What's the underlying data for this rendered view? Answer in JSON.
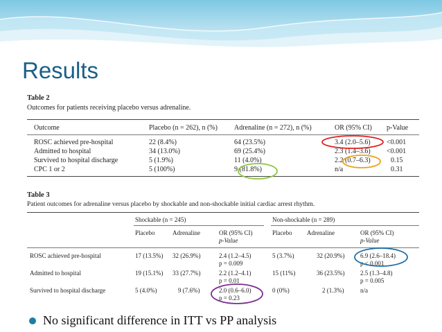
{
  "slide": {
    "title": "Results"
  },
  "colors": {
    "title": "#1a5f86",
    "bullet": "#1a7fa0",
    "red": "#e02020",
    "orange": "#e8a317",
    "green": "#8cc63f",
    "purple": "#7a2e8e",
    "blue": "#1d6fa8"
  },
  "table2": {
    "caption": "Table 2",
    "subtitle": "Outcomes for patients receiving placebo versus adrenaline.",
    "headers": [
      "Outcome",
      "Placebo (n = 262), n (%)",
      "Adrenaline (n = 272), n (%)",
      "OR (95% CI)",
      "p-Value"
    ],
    "rows": [
      [
        "ROSC achieved pre-hospital",
        "22 (8.4%)",
        "64 (23.5%)",
        "3.4 (2.0–5.6)",
        "<0.001"
      ],
      [
        "Admitted to hospital",
        "34 (13.0%)",
        "69 (25.4%)",
        "2.3 (1.4–3.6)",
        "<0.001"
      ],
      [
        "Survived to hospital discharge",
        "5 (1.9%)",
        "11 (4.0%)",
        "2.2 (0.7–6.3)",
        "0.15"
      ],
      [
        "CPC 1 or 2",
        "5 (100%)",
        "9 (81.8%)",
        "n/a",
        "0.31"
      ]
    ]
  },
  "table3": {
    "caption": "Table 3",
    "subtitle": "Patient outcomes for adrenaline versus placebo by shockable and non-shockable initial cardiac arrest rhythm.",
    "group_shockable": "Shockable (n = 245)",
    "group_nonshockable": "Non-shockable (n = 289)",
    "subheaders": [
      "Placebo",
      "Adrenaline",
      "OR (95% CI)",
      "p-Value",
      "Placebo",
      "Adrenaline",
      "OR (95% CI)",
      "p-Value"
    ],
    "rows": [
      {
        "label": "ROSC achieved pre-hospital",
        "s_placebo": "17 (13.5%)",
        "s_adrenaline": "32 (26.9%)",
        "s_or": "2.4 (1.2–4.5)",
        "s_p": "p = 0.009",
        "n_placebo": "5 (3.7%)",
        "n_adrenaline": "32 (20.9%)",
        "n_or": "6.9 (2.6–18.4)",
        "n_p": "p < 0.001"
      },
      {
        "label": "Admitted to hospital",
        "s_placebo": "19 (15.1%)",
        "s_adrenaline": "33 (27.7%)",
        "s_or": "2.2 (1.2–4.1)",
        "s_p": "p = 0.01",
        "n_placebo": "15 (11%)",
        "n_adrenaline": "36 (23.5%)",
        "n_or": "2.5 (1.3–4.8)",
        "n_p": "p = 0.005"
      },
      {
        "label": "Survived to hospital discharge",
        "s_placebo": "5 (4.0%)",
        "s_adrenaline": "9 (7.6%)",
        "s_or": "2.0 (0.6–6.0)",
        "s_p": "p = 0.23",
        "n_placebo": "0 (0%)",
        "n_adrenaline": "2 (1.3%)",
        "n_or": "n/a",
        "n_p": ""
      }
    ]
  },
  "bullets": [
    "No significant difference in ITT vs PP analysis"
  ]
}
